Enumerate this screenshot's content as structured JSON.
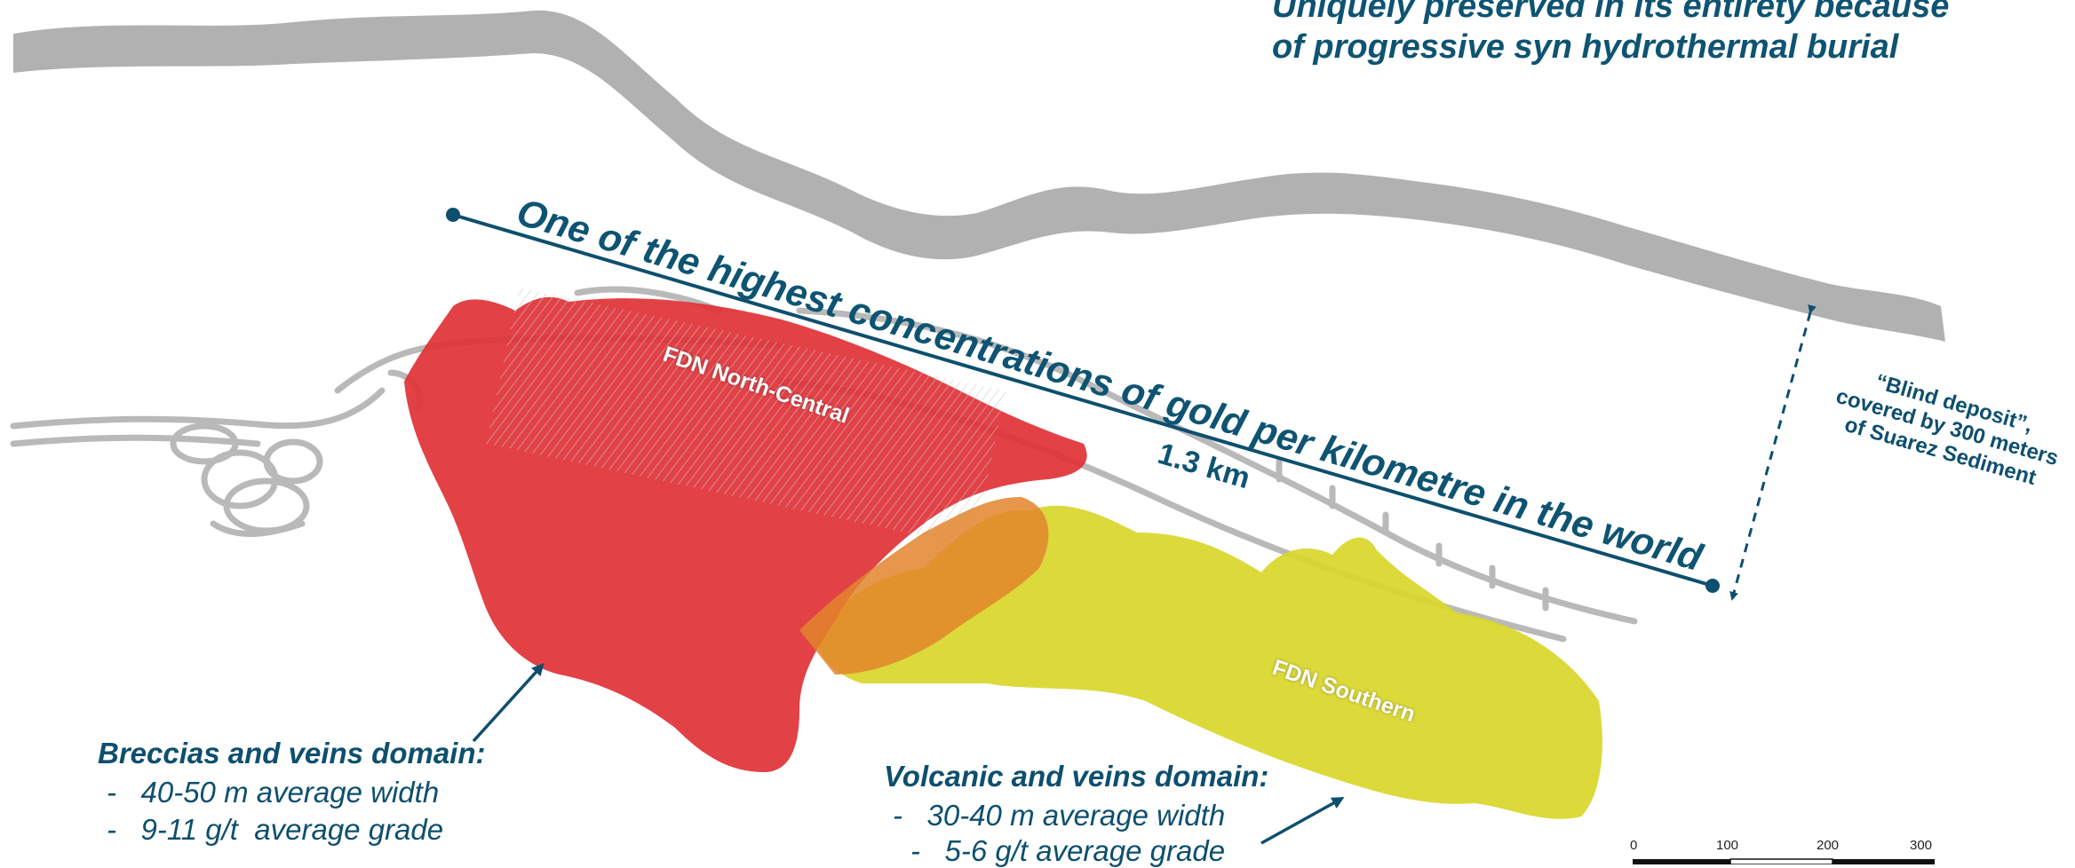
{
  "headline": {
    "line1": "Uniquely preserved in its entirety because",
    "line2": "of progressive syn hydrothermal burial"
  },
  "concentration_statement": "One of the highest concentrations of gold per kilometre in the world",
  "length_label": "1.3 km",
  "ore_bodies": {
    "north_central": {
      "label": "FDN North-Central",
      "color": "#e03136"
    },
    "southern": {
      "label": "FDN Southern",
      "color": "#d9d62a"
    }
  },
  "blind_deposit": {
    "line1": "“Blind deposit”,",
    "line2": "covered by 300 meters",
    "line3": "of  Suarez Sediment"
  },
  "breccias_domain": {
    "title": "Breccias and veins domain:",
    "bullets": [
      "-   40-50 m average width",
      "-   9-11 g/t  average grade"
    ]
  },
  "volcanic_domain": {
    "title": "Volcanic and veins domain:",
    "bullets": [
      "-   30-40 m average width",
      "-   5-6 g/t average grade"
    ]
  },
  "scale_bar": {
    "ticks": [
      "0",
      "100",
      "200",
      "300"
    ]
  },
  "colors": {
    "text_blue": "#0e4f6e",
    "surface_gray": "#a8a8a8",
    "tunnel_gray": "#b9b9b9"
  }
}
